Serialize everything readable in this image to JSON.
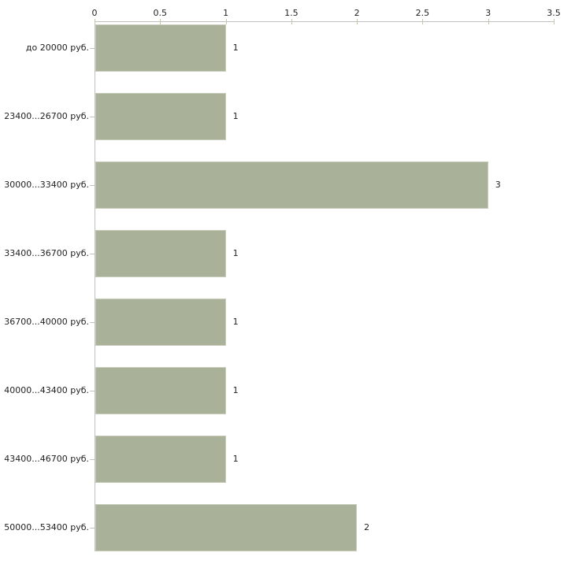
{
  "chart_data": {
    "type": "bar",
    "orientation": "horizontal",
    "title": "",
    "xlabel": "",
    "ylabel": "",
    "categories": [
      "до 20000 руб.",
      "23400...26700 руб.",
      "30000...33400 руб.",
      "33400...36700 руб.",
      "36700...40000 руб.",
      "40000...43400 руб.",
      "43400...46700 руб.",
      "50000...53400 руб."
    ],
    "values": [
      1,
      1,
      3,
      1,
      1,
      1,
      1,
      2
    ],
    "value_labels": [
      "1",
      "1",
      "3",
      "1",
      "1",
      "1",
      "1",
      "2"
    ],
    "xlim": [
      0,
      3.5
    ],
    "xticks": [
      0,
      0.5,
      1,
      1.5,
      2,
      2.5,
      3,
      3.5
    ],
    "xtick_labels": [
      "0",
      "0.5",
      "1",
      "1.5",
      "2",
      "2.5",
      "3",
      "3.5"
    ],
    "x_axis_position": "top",
    "grid": false,
    "legend": false,
    "colors": {
      "bar_fill": "#aab199",
      "bar_border": "#c8ccba",
      "axis_line": "#c0c0c0",
      "xtick_mark": "#c2c9a4",
      "text": "#1f1f1f",
      "background": "#ffffff"
    }
  }
}
